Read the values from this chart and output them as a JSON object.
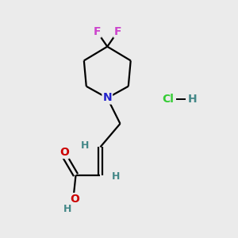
{
  "background_color": "#ebebeb",
  "atom_colors": {
    "C": "#000000",
    "N": "#2222cc",
    "O": "#cc0000",
    "F": "#cc44cc",
    "H": "#448888",
    "Cl": "#33cc33"
  },
  "figsize": [
    3.0,
    3.0
  ],
  "dpi": 100,
  "bond_lw": 1.6,
  "font_size_atom": 9,
  "font_size_HCl": 10
}
